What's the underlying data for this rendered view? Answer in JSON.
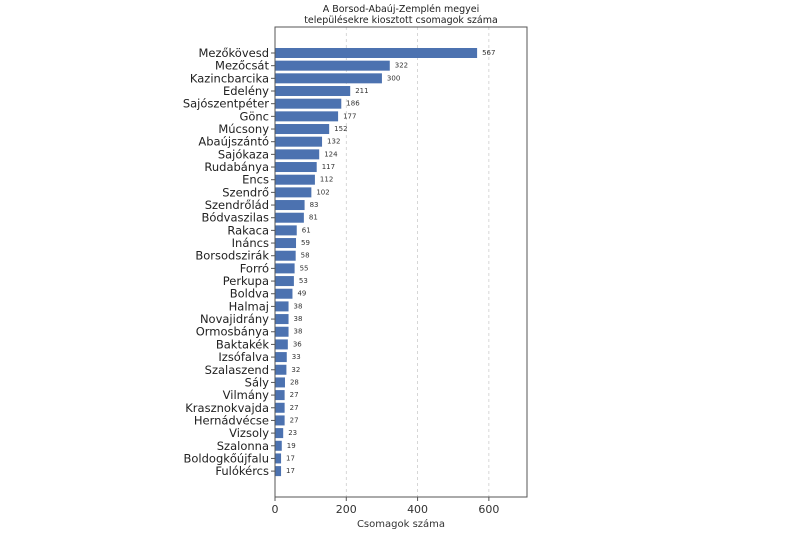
{
  "chart_data": {
    "type": "bar",
    "orientation": "horizontal",
    "title": "A Borsod-Abaúj-Zemplén megyei\ntelepülésekre kiosztott csomagok száma",
    "title_lines": [
      "A Borsod-Abaúj-Zemplén megyei",
      "településekre kiosztott csomagok száma"
    ],
    "xlabel": "Csomagok száma",
    "ylabel": "",
    "xlim": [
      0,
      707
    ],
    "xticks": [
      0,
      200,
      400,
      600
    ],
    "grid": "x-dashed",
    "bar_color": "#4c72b0",
    "categories": [
      "Mezőkövesd",
      "Mezőcsát",
      "Kazincbarcika",
      "Edelény",
      "Sajószentpéter",
      "Gönc",
      "Múcsony",
      "Abaújszántó",
      "Sajókaza",
      "Rudabánya",
      "Encs",
      "Szendrő",
      "Szendrőlád",
      "Bódvaszilas",
      "Rakaca",
      "Ináncs",
      "Borsodszirák",
      "Forró",
      "Perkupa",
      "Boldva",
      "Halmaj",
      "Novajidrány",
      "Ormosbánya",
      "Baktakék",
      "Izsófalva",
      "Szalaszend",
      "Sály",
      "Vilmány",
      "Krasznokvajda",
      "Hernádvécse",
      "Vizsoly",
      "Szalonna",
      "Boldogkőújfalu",
      "Fulókércs"
    ],
    "values": [
      567,
      322,
      300,
      211,
      186,
      177,
      152,
      132,
      124,
      117,
      112,
      102,
      83,
      81,
      61,
      59,
      58,
      55,
      53,
      49,
      38,
      38,
      38,
      36,
      33,
      32,
      28,
      27,
      27,
      27,
      23,
      19,
      17,
      17
    ]
  }
}
